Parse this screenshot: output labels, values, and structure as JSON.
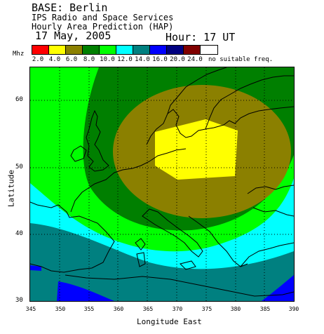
{
  "header": {
    "base": "BASE: Berlin",
    "organization": "IPS Radio and Space Services",
    "product": "Hourly Area Prediction (HAP)",
    "date": "17 May, 2005",
    "hour": "Hour: 17 UT"
  },
  "legend": {
    "unit": "Mhz",
    "swatches": [
      "#ff0000",
      "#ffff00",
      "#8b8000",
      "#007f00",
      "#00ff00",
      "#00ffff",
      "#008080",
      "#0000ff",
      "#000080",
      "#800000",
      "#ffffff"
    ],
    "labels": [
      "2.0",
      "4.0",
      "6.0",
      "8.0",
      "10.0",
      "12.0",
      "14.0",
      "16.0",
      "20.0",
      "24.0"
    ],
    "no_suitable": "no suitable freq."
  },
  "axes": {
    "ylabel": "Latitude",
    "xlabel": "Longitude East",
    "yticks": [
      "60",
      "50",
      "40",
      "30"
    ],
    "xticks": [
      "345",
      "350",
      "355",
      "360",
      "365",
      "370",
      "375",
      "380",
      "385",
      "390"
    ]
  }
}
